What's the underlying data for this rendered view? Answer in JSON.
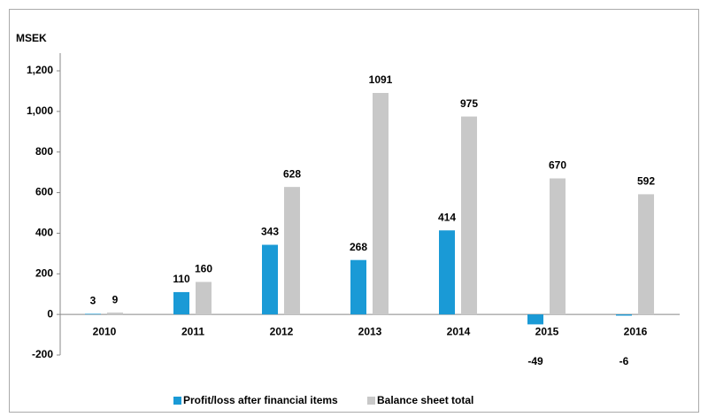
{
  "chart_data": {
    "type": "bar",
    "y_label": "MSEK",
    "categories": [
      "2010",
      "2011",
      "2012",
      "2013",
      "2014",
      "2015",
      "2016"
    ],
    "series": [
      {
        "name": "Profit/loss after financial items",
        "color": "#1a9ad6",
        "values": [
          3,
          110,
          343,
          268,
          414,
          -49,
          -6
        ]
      },
      {
        "name": "Balance sheet total",
        "color": "#c8c8c8",
        "values": [
          9,
          160,
          628,
          1091,
          975,
          670,
          592
        ]
      }
    ],
    "ylim": [
      -200,
      1200
    ],
    "yticks": [
      -200,
      0,
      200,
      400,
      600,
      800,
      {
        "value": 1000,
        "label": "1,000"
      },
      {
        "value": 1200,
        "label": "1,200"
      }
    ],
    "legend": "bottom"
  }
}
